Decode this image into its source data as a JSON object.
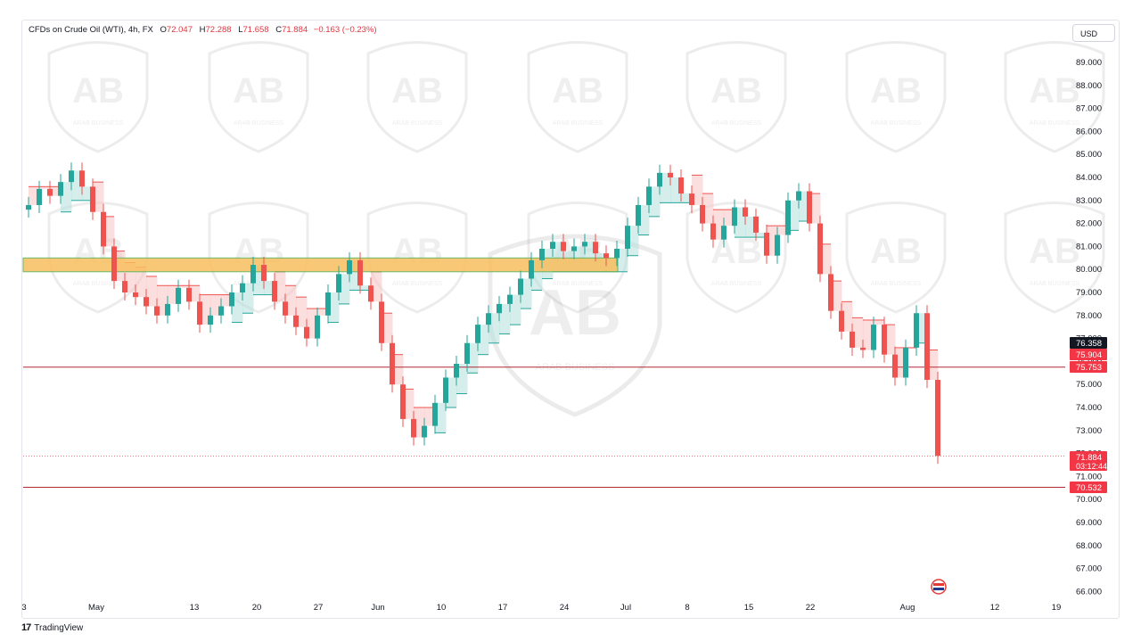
{
  "header": {
    "instrument": "CFDs on Crude Oil (WTI), 4h, FX",
    "open_label": "O",
    "open": "72.047",
    "high_label": "H",
    "high": "72.288",
    "low_label": "L",
    "low": "71.658",
    "close_label": "C",
    "close": "71.884",
    "change": "−0.163 (−0.23%)"
  },
  "currency": "USD",
  "watermark_text": "ARAB BUSINESS",
  "footer": {
    "brand": "TradingView"
  },
  "colors": {
    "up": "#26a69a",
    "down": "#ef5350",
    "zone_fill": "#f9bf5f",
    "zone_border": "#4caf50",
    "level_line": "#b22833",
    "price_tag": "#f23645"
  },
  "chart_data": {
    "type": "line",
    "chart_style": "candlestick-with-trailing-stop-band",
    "timeframe": "4h",
    "ylim": [
      65.5,
      90.2
    ],
    "y_ticks": [
      "66.000",
      "67.000",
      "68.000",
      "69.000",
      "70.000",
      "71.000",
      "72.000",
      "73.000",
      "74.000",
      "75.000",
      "76.000",
      "77.000",
      "78.000",
      "79.000",
      "80.000",
      "81.000",
      "82.000",
      "83.000",
      "84.000",
      "85.000",
      "86.000",
      "87.000",
      "88.000",
      "89.000"
    ],
    "x_ticks": [
      "3",
      "May",
      "13",
      "20",
      "27",
      "Jun",
      "10",
      "17",
      "24",
      "Jul",
      "8",
      "15",
      "22",
      "Aug",
      "12",
      "19"
    ],
    "x": [
      0,
      2,
      4,
      6,
      8,
      10,
      12,
      14,
      16,
      18,
      20,
      22,
      24,
      26,
      28,
      30,
      32,
      34,
      36,
      38,
      40,
      42,
      44,
      46,
      48,
      50,
      52,
      54,
      56,
      58,
      60,
      62,
      64,
      66,
      68,
      70,
      72,
      74,
      76,
      78,
      80,
      82,
      84,
      86,
      88,
      90,
      92,
      94,
      96,
      98,
      100,
      102,
      104,
      106,
      108,
      110,
      112,
      114,
      116,
      118,
      120,
      122,
      124,
      126,
      128,
      130,
      132,
      134,
      136,
      138,
      140,
      142,
      144,
      146,
      148,
      150,
      152,
      154,
      156,
      158,
      160,
      162,
      164,
      166,
      168,
      170
    ],
    "series": [
      {
        "values": [
          82.8,
          83.5,
          83.2,
          83.8,
          84.3,
          83.6,
          82.5,
          81.0,
          79.5,
          79.0,
          78.8,
          78.4,
          78.0,
          78.5,
          79.2,
          78.6,
          77.6,
          78.0,
          78.4,
          79.0,
          79.4,
          80.2,
          79.5,
          78.6,
          78.0,
          77.5,
          77.0,
          78.0,
          79.0,
          79.8,
          80.4,
          79.3,
          78.6,
          76.8,
          75.0,
          73.5,
          72.7,
          73.2,
          74.2,
          75.3,
          75.9,
          76.8,
          77.6,
          78.1,
          78.5,
          78.9,
          79.6,
          80.4,
          80.9,
          81.2,
          80.8,
          81.0,
          81.2,
          80.7,
          80.5,
          80.9,
          81.9,
          82.8,
          83.6,
          84.2,
          84.0,
          83.3,
          82.8,
          82.0,
          81.3,
          81.9,
          82.7,
          82.3,
          81.6,
          80.6,
          81.5,
          83.0,
          83.4,
          82.0,
          79.8,
          78.2,
          77.3,
          76.6,
          76.5,
          77.6,
          76.3,
          75.3,
          76.6,
          78.1,
          75.2,
          71.9
        ]
      }
    ],
    "support_resistance_zone": {
      "from": 79.9,
      "to": 80.5
    },
    "horizontal_levels": [
      75.753,
      70.532
    ],
    "price_tags": [
      {
        "value": 76.358,
        "label": "76.358",
        "style": "dark"
      },
      {
        "value": 75.904,
        "label": "75.904",
        "style": "red"
      },
      {
        "value": 75.753,
        "label": "75.753",
        "style": "red"
      },
      {
        "value": 71.884,
        "label": "71.884",
        "sub": "03:12:44",
        "style": "red"
      },
      {
        "value": 70.532,
        "label": "70.532",
        "style": "red"
      }
    ],
    "last_price": 71.884
  }
}
